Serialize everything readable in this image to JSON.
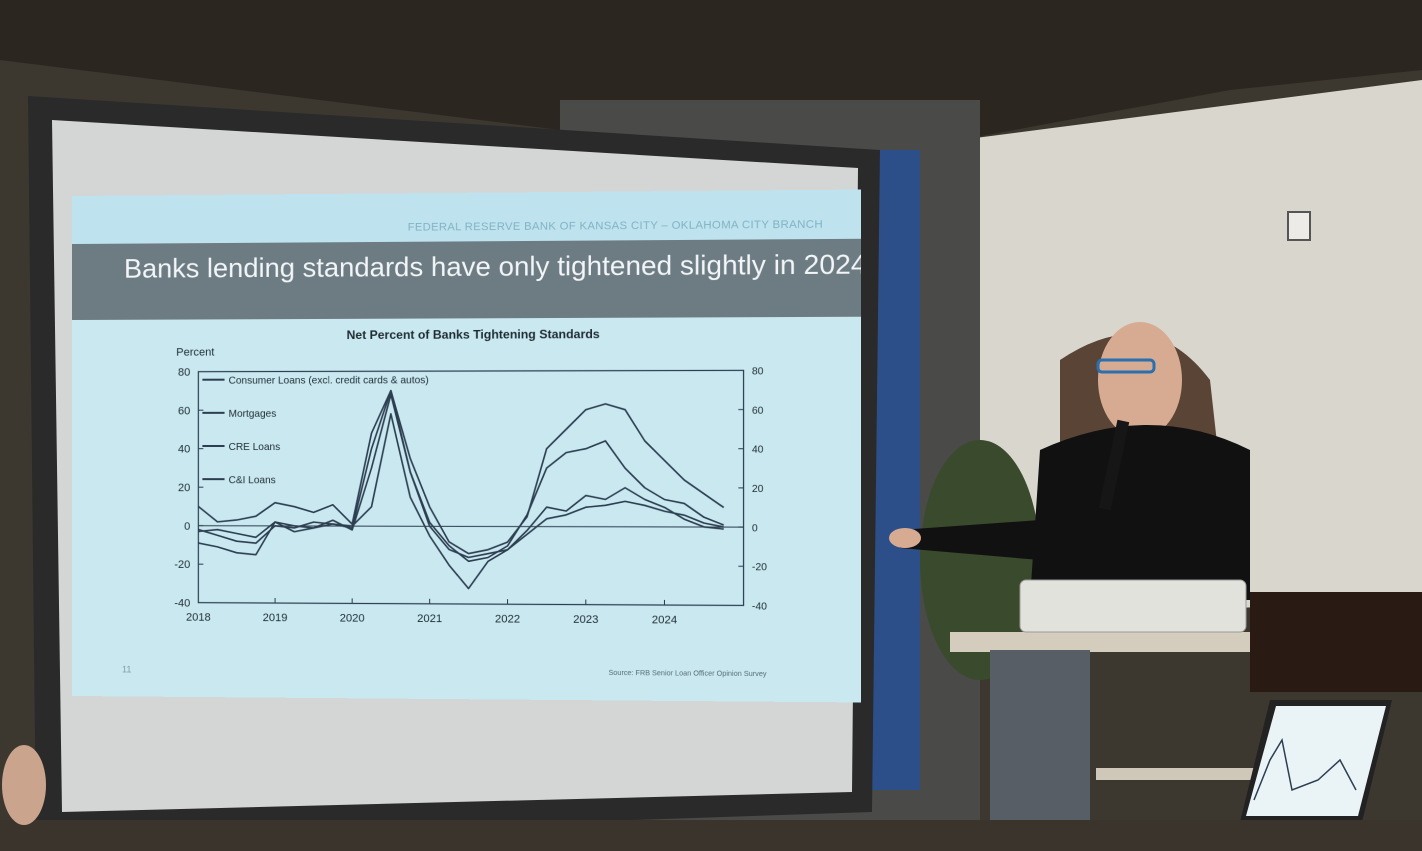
{
  "slide": {
    "org_line": "FEDERAL RESERVE BANK OF KANSAS CITY – OKLAHOMA CITY BRANCH",
    "title": "Banks lending standards have only tightened slightly in 2024",
    "page_number": "11",
    "source": "Source: FRB Senior Loan Officer Opinion Survey"
  },
  "colors": {
    "slide_bg": "#cde9f0",
    "title_bar": "#6d7b83",
    "line": "#2c3e50"
  },
  "chart_data": {
    "type": "line",
    "title": "Net Percent of Banks Tightening Standards",
    "ylabel": "Percent",
    "xlim": [
      2018,
      2025
    ],
    "ylim": [
      -40,
      80
    ],
    "yticks_left": [
      "80",
      "60",
      "40",
      "20",
      "0",
      "-20",
      "-40"
    ],
    "yticks_right": [
      "80",
      "60",
      "40",
      "20",
      "0",
      "-20",
      "-40"
    ],
    "xticks": [
      "2018",
      "2019",
      "2020",
      "2021",
      "2022",
      "2023",
      "2024"
    ],
    "legend_placement": "top-left",
    "grid": false,
    "series": [
      {
        "name": "Consumer Loans (excl. credit cards & autos)",
        "x": [
          2018,
          2018.25,
          2018.5,
          2018.75,
          2019,
          2019.25,
          2019.5,
          2019.75,
          2020,
          2020.25,
          2020.5,
          2020.75,
          2021,
          2021.25,
          2021.5,
          2021.75,
          2022,
          2022.25,
          2022.5,
          2022.75,
          2023,
          2023.25,
          2023.5,
          2023.75,
          2024,
          2024.25,
          2024.5,
          2024.75
        ],
        "values": [
          -3,
          -2,
          -4,
          -6,
          2,
          0,
          -1,
          3,
          -2,
          30,
          68,
          28,
          0,
          -12,
          -16,
          -14,
          -12,
          -4,
          4,
          6,
          10,
          11,
          13,
          11,
          8,
          6,
          2,
          0
        ]
      },
      {
        "name": "Mortgages",
        "x": [
          2018,
          2018.25,
          2018.5,
          2018.75,
          2019,
          2019.25,
          2019.5,
          2019.75,
          2020,
          2020.25,
          2020.5,
          2020.75,
          2021,
          2021.25,
          2021.5,
          2021.75,
          2022,
          2022.25,
          2022.5,
          2022.75,
          2023,
          2023.25,
          2023.5,
          2023.75,
          2024,
          2024.25,
          2024.5,
          2024.75
        ],
        "values": [
          -9,
          -11,
          -14,
          -15,
          2,
          -3,
          -1,
          1,
          0,
          10,
          58,
          15,
          -5,
          -20,
          -32,
          -18,
          -12,
          -2,
          10,
          8,
          16,
          14,
          20,
          14,
          10,
          4,
          0,
          -1
        ]
      },
      {
        "name": "CRE Loans",
        "x": [
          2018,
          2018.25,
          2018.5,
          2018.75,
          2019,
          2019.25,
          2019.5,
          2019.75,
          2020,
          2020.25,
          2020.5,
          2020.75,
          2021,
          2021.25,
          2021.5,
          2021.75,
          2022,
          2022.25,
          2022.5,
          2022.75,
          2023,
          2023.25,
          2023.5,
          2023.75,
          2024,
          2024.25,
          2024.5,
          2024.75
        ],
        "values": [
          10,
          2,
          3,
          5,
          12,
          10,
          7,
          11,
          1,
          48,
          70,
          35,
          10,
          -8,
          -14,
          -12,
          -8,
          5,
          40,
          50,
          60,
          63,
          60,
          44,
          34,
          24,
          17,
          10
        ]
      },
      {
        "name": "C&I Loans",
        "x": [
          2018,
          2018.25,
          2018.5,
          2018.75,
          2019,
          2019.25,
          2019.5,
          2019.75,
          2020,
          2020.25,
          2020.5,
          2020.75,
          2021,
          2021.25,
          2021.5,
          2021.75,
          2022,
          2022.25,
          2022.5,
          2022.75,
          2023,
          2023.25,
          2023.5,
          2023.75,
          2024,
          2024.25,
          2024.5,
          2024.75
        ],
        "values": [
          -2,
          -5,
          -8,
          -9,
          0,
          -1,
          2,
          1,
          -1,
          40,
          70,
          28,
          2,
          -10,
          -18,
          -16,
          -10,
          6,
          30,
          38,
          40,
          44,
          30,
          20,
          14,
          12,
          5,
          1
        ]
      }
    ]
  }
}
